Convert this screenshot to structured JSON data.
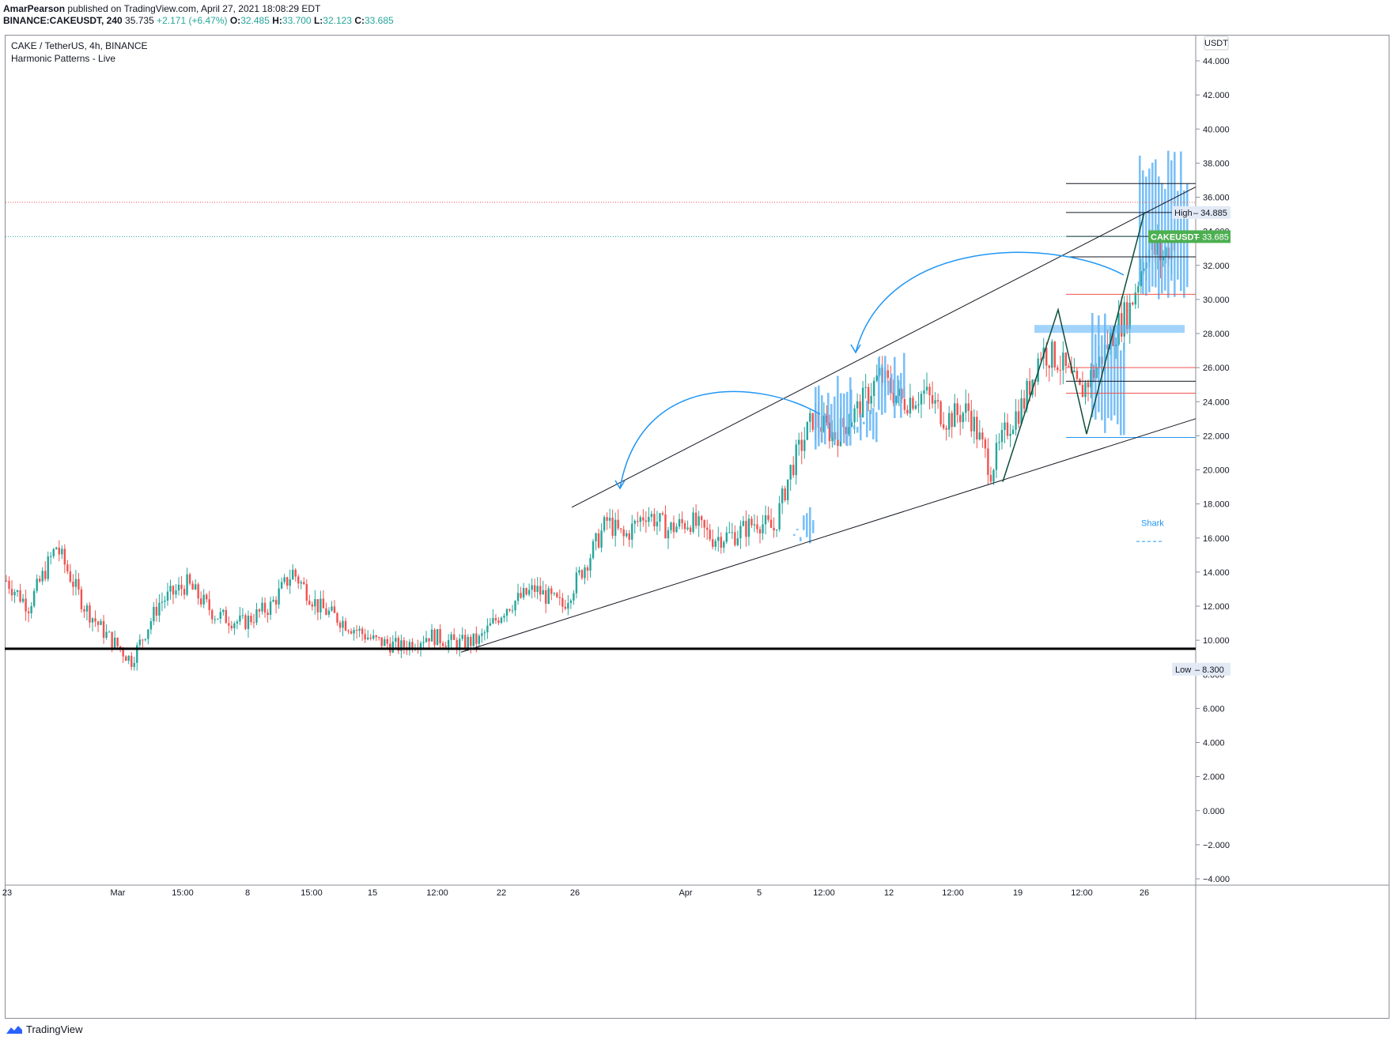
{
  "header": {
    "author": "AmarPearson",
    "published_text": "published on TradingView.com, April 27, 2021 18:08:29 EDT",
    "symbol": "BINANCE:CAKEUSDT, 240",
    "price": "35.735",
    "change": "+2.171 (+6.47%)",
    "o_label": "O:",
    "o_value": "32.485",
    "h_label": "H:",
    "h_value": "33.700",
    "l_label": "L:",
    "l_value": "32.123",
    "c_label": "C:",
    "c_value": "33.685"
  },
  "legend": {
    "title": "CAKE / TetherUS, 4h, BINANCE",
    "indicator": "Harmonic Patterns - Live"
  },
  "currency_button": "USDT",
  "branding": "TradingView",
  "colors": {
    "up": "#26a69a",
    "down": "#ef5350",
    "projection": "#64b5f6",
    "arrow": "#2196f3",
    "trend": "#131722",
    "pattern": "#0b4d3b",
    "price_tag": "#4caf50"
  },
  "chart_data": {
    "type": "candlestick",
    "ylim": [
      -4,
      46
    ],
    "y_ticks": [
      -4,
      -2,
      0,
      2,
      4,
      6,
      8,
      10,
      12,
      14,
      16,
      18,
      20,
      22,
      24,
      26,
      28,
      30,
      32,
      34,
      36,
      38,
      40,
      42,
      44
    ],
    "y_tick_labels": [
      "−4.000",
      "−2.000",
      "0.000",
      "2.000",
      "4.000",
      "6.000",
      "8.000",
      "10.000",
      "12.000",
      "14.000",
      "16.000",
      "18.000",
      "20.000",
      "22.000",
      "24.000",
      "26.000",
      "28.000",
      "30.000",
      "32.000",
      "34.000",
      "36.000",
      "38.000",
      "40.000",
      "42.000",
      "44.000"
    ],
    "x_tick_labels": [
      "23",
      "Mar",
      "15:00",
      "8",
      "15:00",
      "15",
      "12:00",
      "22",
      "26",
      "Apr",
      "5",
      "12:00",
      "12",
      "12:00",
      "19",
      "12:00",
      "26"
    ],
    "price_key_points": [
      {
        "i": 0,
        "p": 13.5
      },
      {
        "i": 8,
        "p": 12.0
      },
      {
        "i": 18,
        "p": 15.5
      },
      {
        "i": 28,
        "p": 12.0
      },
      {
        "i": 35,
        "p": 10.5
      },
      {
        "i": 45,
        "p": 8.8
      },
      {
        "i": 55,
        "p": 12.2
      },
      {
        "i": 65,
        "p": 13.3
      },
      {
        "i": 75,
        "p": 11.5
      },
      {
        "i": 85,
        "p": 11.0
      },
      {
        "i": 95,
        "p": 12.0
      },
      {
        "i": 103,
        "p": 14.0
      },
      {
        "i": 112,
        "p": 12.0
      },
      {
        "i": 122,
        "p": 11.0
      },
      {
        "i": 132,
        "p": 10.0
      },
      {
        "i": 142,
        "p": 9.6
      },
      {
        "i": 152,
        "p": 10.3
      },
      {
        "i": 162,
        "p": 9.8
      },
      {
        "i": 170,
        "p": 10.0
      },
      {
        "i": 180,
        "p": 12.0
      },
      {
        "i": 190,
        "p": 13.0
      },
      {
        "i": 200,
        "p": 12.0
      },
      {
        "i": 210,
        "p": 15.0
      },
      {
        "i": 216,
        "p": 17.0
      },
      {
        "i": 222,
        "p": 16.0
      },
      {
        "i": 230,
        "p": 17.5
      },
      {
        "i": 238,
        "p": 16.5
      },
      {
        "i": 246,
        "p": 17.0
      },
      {
        "i": 254,
        "p": 16.0
      },
      {
        "i": 262,
        "p": 16.2
      },
      {
        "i": 270,
        "p": 17.0
      },
      {
        "i": 276,
        "p": 16.5
      },
      {
        "i": 282,
        "p": 20.0
      },
      {
        "i": 290,
        "p": 23.0
      },
      {
        "i": 298,
        "p": 22.0
      },
      {
        "i": 306,
        "p": 23.5
      },
      {
        "i": 314,
        "p": 25.5
      },
      {
        "i": 322,
        "p": 24.0
      },
      {
        "i": 330,
        "p": 24.5
      },
      {
        "i": 338,
        "p": 23.0
      },
      {
        "i": 346,
        "p": 23.5
      },
      {
        "i": 354,
        "p": 20.0
      },
      {
        "i": 360,
        "p": 22.5
      },
      {
        "i": 366,
        "p": 24.0
      },
      {
        "i": 372,
        "p": 27.0
      },
      {
        "i": 378,
        "p": 26.5
      },
      {
        "i": 386,
        "p": 24.5
      },
      {
        "i": 392,
        "p": 26.0
      },
      {
        "i": 398,
        "p": 28.0
      },
      {
        "i": 404,
        "p": 29.5
      },
      {
        "i": 410,
        "p": 33.0
      },
      {
        "i": 416,
        "p": 32.5
      },
      {
        "i": 420,
        "p": 33.7
      }
    ],
    "horizontal_levels": [
      {
        "name": "support",
        "value": 9.5
      },
      {
        "name": "pattern-fib",
        "value": 36.8
      },
      {
        "name": "pattern-fib",
        "value": 35.1
      },
      {
        "name": "pattern-fib",
        "value": 33.7
      },
      {
        "name": "pattern-fib",
        "value": 32.5
      },
      {
        "name": "pattern-red",
        "value": 30.3
      },
      {
        "name": "pattern-red",
        "value": 26.0
      },
      {
        "name": "pattern-black",
        "value": 25.2
      },
      {
        "name": "pattern-red",
        "value": 24.5
      },
      {
        "name": "pattern-blue",
        "value": 21.9
      }
    ],
    "high": {
      "label": "High",
      "value": "34.885"
    },
    "low": {
      "label": "Low",
      "value": "8.300"
    },
    "last_price": {
      "label": "CAKEUSDT",
      "value": "33.685"
    },
    "pattern_name": "Shark",
    "grid": false
  }
}
